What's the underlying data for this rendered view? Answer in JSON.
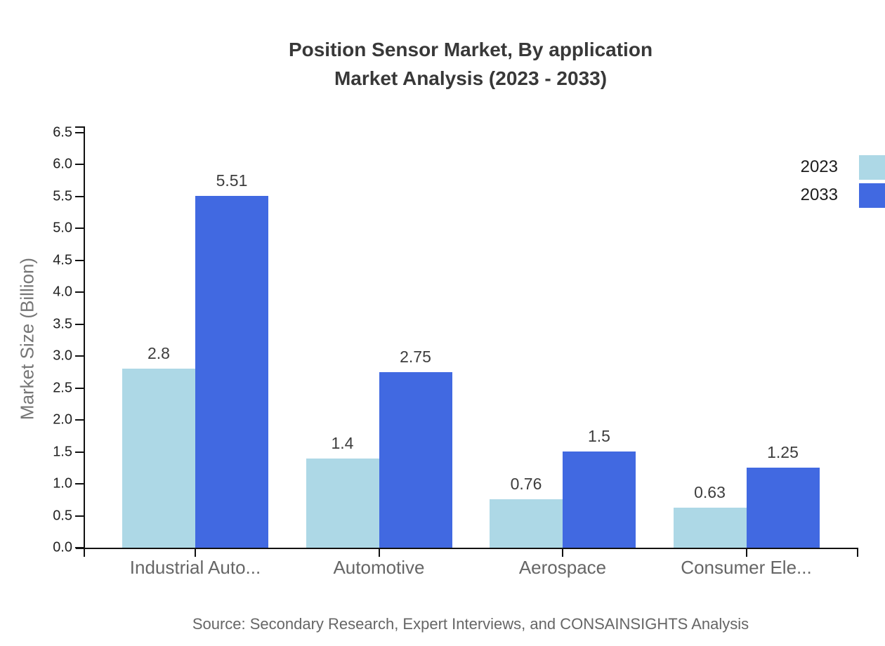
{
  "title": {
    "line1": "Position Sensor Market, By application",
    "line2": "Market Analysis (2023 - 2033)"
  },
  "legend": {
    "position": "top-right",
    "items": [
      {
        "label": "2023",
        "color": "#ADD8E6"
      },
      {
        "label": "2033",
        "color": "#4169E1"
      }
    ]
  },
  "chart_data": {
    "type": "bar",
    "categories": [
      "Industrial Auto...",
      "Automotive",
      "Aerospace",
      "Consumer Ele..."
    ],
    "series": [
      {
        "name": "2023",
        "color": "#ADD8E6",
        "values": [
          2.8,
          1.4,
          0.76,
          0.63
        ]
      },
      {
        "name": "2033",
        "color": "#4169E1",
        "values": [
          5.51,
          2.75,
          1.5,
          1.25
        ]
      }
    ],
    "title": "Position Sensor Market, By application Market Analysis (2023 - 2033)",
    "xlabel": "",
    "ylabel": "Market Size (Billion)",
    "ylim": [
      0.0,
      6.5
    ],
    "ytick_step": 0.5,
    "yticks": [
      "0.0",
      "0.5",
      "1.0",
      "1.5",
      "2.0",
      "2.5",
      "3.0",
      "3.5",
      "4.0",
      "4.5",
      "5.0",
      "5.5",
      "6.0",
      "6.5"
    ],
    "grid": false,
    "legend_position": "top-right"
  },
  "source": "Source: Secondary Research, Expert Interviews, and CONSAINSIGHTS Analysis"
}
